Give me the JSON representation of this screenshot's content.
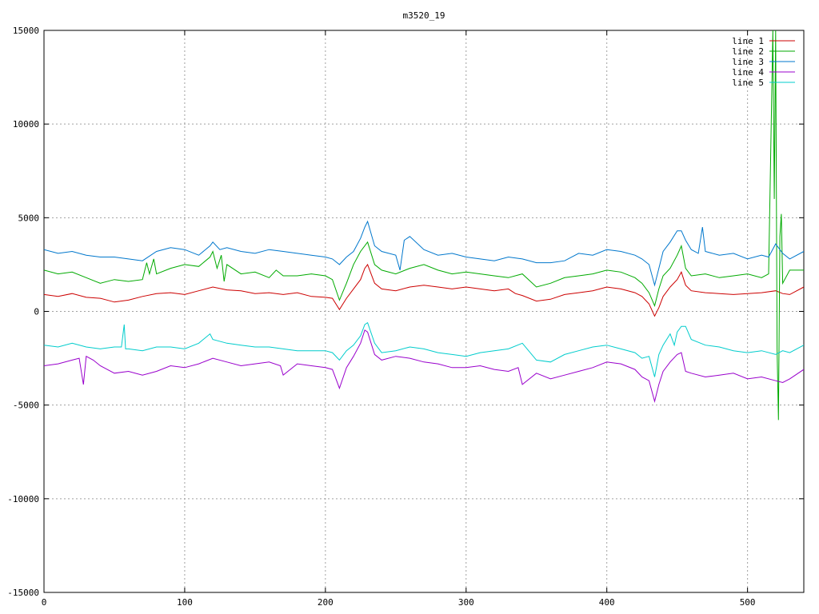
{
  "chart_data": {
    "type": "line",
    "title": "m3520_19",
    "xlabel": "",
    "ylabel": "",
    "xlim": [
      0,
      540
    ],
    "ylim": [
      -15000,
      15000
    ],
    "xticks": [
      0,
      100,
      200,
      300,
      400,
      500
    ],
    "yticks": [
      -15000,
      -10000,
      -5000,
      0,
      5000,
      10000,
      15000
    ],
    "grid": true,
    "legend_position": "top-right",
    "series": [
      {
        "name": "line 1",
        "color": "#cc0000",
        "x": [
          0,
          10,
          20,
          30,
          40,
          50,
          60,
          70,
          80,
          90,
          100,
          110,
          120,
          130,
          140,
          150,
          160,
          170,
          180,
          190,
          200,
          205,
          210,
          215,
          220,
          225,
          228,
          230,
          235,
          240,
          250,
          260,
          270,
          280,
          290,
          300,
          310,
          320,
          330,
          335,
          340,
          350,
          360,
          370,
          380,
          390,
          400,
          410,
          420,
          425,
          430,
          434,
          437,
          440,
          445,
          450,
          453,
          456,
          460,
          470,
          480,
          490,
          500,
          510,
          520,
          525,
          530,
          540
        ],
        "y": [
          900,
          800,
          950,
          750,
          700,
          500,
          600,
          800,
          950,
          1000,
          900,
          1100,
          1300,
          1150,
          1100,
          950,
          1000,
          900,
          1000,
          800,
          750,
          700,
          100,
          700,
          1200,
          1700,
          2300,
          2500,
          1500,
          1200,
          1100,
          1300,
          1400,
          1300,
          1200,
          1300,
          1200,
          1100,
          1200,
          950,
          850,
          550,
          650,
          900,
          1000,
          1100,
          1300,
          1200,
          1000,
          800,
          400,
          -250,
          200,
          800,
          1300,
          1700,
          2100,
          1400,
          1100,
          1000,
          950,
          900,
          950,
          1000,
          1100,
          950,
          900,
          1300
        ]
      },
      {
        "name": "line 2",
        "color": "#00aa00",
        "x": [
          0,
          10,
          20,
          30,
          40,
          50,
          60,
          70,
          73,
          75,
          78,
          80,
          90,
          100,
          110,
          118,
          120,
          123,
          126,
          128,
          130,
          140,
          150,
          160,
          165,
          170,
          180,
          190,
          200,
          205,
          210,
          215,
          220,
          225,
          230,
          235,
          240,
          250,
          260,
          270,
          280,
          290,
          300,
          310,
          320,
          330,
          340,
          350,
          360,
          370,
          380,
          390,
          400,
          410,
          420,
          425,
          430,
          434,
          437,
          440,
          445,
          450,
          453,
          456,
          460,
          470,
          480,
          490,
          500,
          510,
          515,
          518,
          519,
          520,
          521,
          522,
          523,
          524,
          525,
          530,
          540
        ],
        "y": [
          2200,
          2000,
          2100,
          1800,
          1500,
          1700,
          1600,
          1700,
          2600,
          2000,
          2800,
          2000,
          2300,
          2500,
          2400,
          2900,
          3200,
          2300,
          3000,
          1600,
          2500,
          2000,
          2100,
          1800,
          2200,
          1900,
          1900,
          2000,
          1900,
          1700,
          600,
          1500,
          2500,
          3200,
          3700,
          2500,
          2200,
          2000,
          2300,
          2500,
          2200,
          2000,
          2100,
          2000,
          1900,
          1800,
          2000,
          1300,
          1500,
          1800,
          1900,
          2000,
          2200,
          2100,
          1800,
          1500,
          1000,
          300,
          1200,
          1900,
          2300,
          3000,
          3500,
          2300,
          1900,
          2000,
          1800,
          1900,
          2000,
          1800,
          2000,
          15000,
          6000,
          15000,
          -2000,
          -5800,
          4000,
          5200,
          1500,
          2200,
          2200
        ]
      },
      {
        "name": "line 3",
        "color": "#0077cc",
        "x": [
          0,
          10,
          20,
          30,
          40,
          50,
          60,
          70,
          80,
          90,
          100,
          110,
          118,
          120,
          125,
          130,
          140,
          150,
          160,
          170,
          180,
          190,
          200,
          205,
          210,
          215,
          220,
          225,
          228,
          230,
          235,
          240,
          250,
          253,
          256,
          260,
          270,
          280,
          290,
          300,
          310,
          320,
          330,
          340,
          350,
          360,
          370,
          380,
          390,
          400,
          410,
          420,
          425,
          430,
          434,
          437,
          440,
          445,
          450,
          453,
          456,
          460,
          465,
          468,
          470,
          480,
          490,
          500,
          510,
          515,
          520,
          525,
          530,
          540
        ],
        "y": [
          3300,
          3100,
          3200,
          3000,
          2900,
          2900,
          2800,
          2700,
          3200,
          3400,
          3300,
          3000,
          3500,
          3700,
          3300,
          3400,
          3200,
          3100,
          3300,
          3200,
          3100,
          3000,
          2900,
          2800,
          2500,
          2900,
          3200,
          3900,
          4500,
          4800,
          3500,
          3200,
          3000,
          2200,
          3800,
          4000,
          3300,
          3000,
          3100,
          2900,
          2800,
          2700,
          2900,
          2800,
          2600,
          2600,
          2700,
          3100,
          3000,
          3300,
          3200,
          3000,
          2800,
          2500,
          1400,
          2300,
          3200,
          3700,
          4300,
          4300,
          3800,
          3300,
          3100,
          4500,
          3200,
          3000,
          3100,
          2800,
          3000,
          2900,
          3600,
          3100,
          2800,
          3200
        ]
      },
      {
        "name": "line 4",
        "color": "#9900cc",
        "x": [
          0,
          10,
          20,
          25,
          28,
          30,
          35,
          40,
          50,
          60,
          70,
          80,
          90,
          100,
          110,
          120,
          130,
          140,
          150,
          160,
          168,
          170,
          180,
          190,
          200,
          205,
          210,
          215,
          220,
          225,
          228,
          230,
          235,
          240,
          250,
          260,
          270,
          280,
          290,
          300,
          310,
          320,
          330,
          337,
          340,
          350,
          360,
          370,
          380,
          390,
          400,
          410,
          420,
          425,
          430,
          434,
          437,
          440,
          445,
          450,
          453,
          456,
          460,
          470,
          480,
          490,
          500,
          510,
          520,
          525,
          530,
          540
        ],
        "y": [
          -2900,
          -2800,
          -2600,
          -2500,
          -3900,
          -2400,
          -2600,
          -2900,
          -3300,
          -3200,
          -3400,
          -3200,
          -2900,
          -3000,
          -2800,
          -2500,
          -2700,
          -2900,
          -2800,
          -2700,
          -2900,
          -3400,
          -2800,
          -2900,
          -3000,
          -3100,
          -4100,
          -3000,
          -2400,
          -1700,
          -1000,
          -1100,
          -2300,
          -2600,
          -2400,
          -2500,
          -2700,
          -2800,
          -3000,
          -3000,
          -2900,
          -3100,
          -3200,
          -3000,
          -3900,
          -3300,
          -3600,
          -3400,
          -3200,
          -3000,
          -2700,
          -2800,
          -3100,
          -3500,
          -3700,
          -4800,
          -3900,
          -3200,
          -2700,
          -2300,
          -2200,
          -3200,
          -3300,
          -3500,
          -3400,
          -3300,
          -3600,
          -3500,
          -3700,
          -3800,
          -3600,
          -3100
        ]
      },
      {
        "name": "line 5",
        "color": "#00cccc",
        "x": [
          0,
          10,
          20,
          30,
          40,
          50,
          55,
          57,
          58,
          60,
          70,
          80,
          90,
          100,
          110,
          118,
          120,
          130,
          140,
          150,
          160,
          170,
          180,
          190,
          200,
          205,
          210,
          215,
          220,
          225,
          228,
          230,
          235,
          240,
          250,
          260,
          270,
          280,
          290,
          300,
          310,
          320,
          330,
          340,
          350,
          360,
          370,
          380,
          390,
          400,
          410,
          420,
          425,
          430,
          434,
          437,
          440,
          445,
          448,
          450,
          453,
          456,
          460,
          470,
          480,
          490,
          500,
          510,
          520,
          525,
          530,
          540
        ],
        "y": [
          -1800,
          -1900,
          -1700,
          -1900,
          -2000,
          -1900,
          -1900,
          -700,
          -2000,
          -2000,
          -2100,
          -1900,
          -1900,
          -2000,
          -1700,
          -1200,
          -1500,
          -1700,
          -1800,
          -1900,
          -1900,
          -2000,
          -2100,
          -2100,
          -2100,
          -2200,
          -2600,
          -2100,
          -1800,
          -1300,
          -700,
          -600,
          -1700,
          -2200,
          -2100,
          -1900,
          -2000,
          -2200,
          -2300,
          -2400,
          -2200,
          -2100,
          -2000,
          -1700,
          -2600,
          -2700,
          -2300,
          -2100,
          -1900,
          -1800,
          -2000,
          -2200,
          -2500,
          -2400,
          -3500,
          -2300,
          -1800,
          -1200,
          -1800,
          -1100,
          -800,
          -800,
          -1500,
          -1800,
          -1900,
          -2100,
          -2200,
          -2100,
          -2300,
          -2100,
          -2200,
          -1800
        ]
      }
    ]
  }
}
